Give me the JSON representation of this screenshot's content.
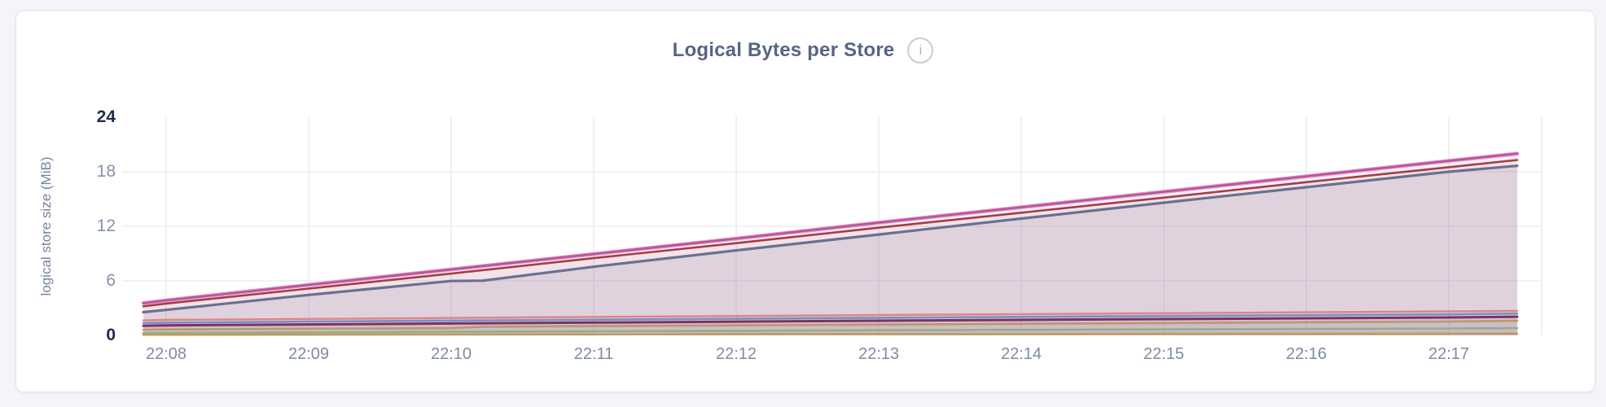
{
  "header": {
    "title": "Logical Bytes per Store",
    "info_glyph": "i"
  },
  "colors": {
    "page_background": "#F3F5F9",
    "card_background": "#FFFFFF",
    "card_border": "#E2E4E9",
    "grid": "#ECEDF0",
    "title_text": "#566584",
    "tick_minor": "#8592A9",
    "tick_major": "#1F2C4E",
    "axis_title": "#75829D"
  },
  "chart_data": {
    "type": "area",
    "title": "Logical Bytes per Store",
    "xlabel": "",
    "ylabel": "logical store size (MiB)",
    "x_ticks": [
      "22:08",
      "22:09",
      "22:10",
      "22:11",
      "22:12",
      "22:13",
      "22:14",
      "22:15",
      "22:16",
      "22:17"
    ],
    "y_ticks": [
      0,
      6,
      12,
      18,
      24
    ],
    "ylim": [
      0,
      24
    ],
    "x_range_minutes": [
      7.84,
      17.48
    ],
    "grid": true,
    "legend": "none",
    "series": [
      {
        "id": "pink",
        "color": "#BE4F9B",
        "halo": "#DB97C6",
        "width": 2.4,
        "fill": "rgba(199,95,167,0.10)",
        "points": [
          [
            7.84,
            3.55
          ],
          [
            8,
            3.85
          ],
          [
            9,
            5.55
          ],
          [
            10,
            7.25
          ],
          [
            11,
            8.95
          ],
          [
            12,
            10.65
          ],
          [
            13,
            12.4
          ],
          [
            14,
            14.1
          ],
          [
            15,
            15.8
          ],
          [
            16,
            17.5
          ],
          [
            17,
            19.2
          ],
          [
            17.48,
            20.0
          ]
        ]
      },
      {
        "id": "maroon",
        "color": "#A23E48",
        "width": 2.6,
        "fill": "rgba(162,62,72,0.07)",
        "points": [
          [
            7.84,
            3.2
          ],
          [
            8,
            3.5
          ],
          [
            9,
            5.15
          ],
          [
            10,
            6.8
          ],
          [
            11,
            8.5
          ],
          [
            12,
            10.15
          ],
          [
            13,
            11.85
          ],
          [
            14,
            13.5
          ],
          [
            15,
            15.15
          ],
          [
            16,
            16.85
          ],
          [
            17,
            18.5
          ],
          [
            17.48,
            19.3
          ]
        ]
      },
      {
        "id": "slate",
        "color": "#6A7090",
        "width": 3.2,
        "fill": "rgba(106,112,144,0.13)",
        "points": [
          [
            7.84,
            2.55
          ],
          [
            8,
            2.8
          ],
          [
            9,
            4.45
          ],
          [
            10,
            5.98
          ],
          [
            10.22,
            6.02
          ],
          [
            11,
            7.55
          ],
          [
            12,
            9.35
          ],
          [
            13,
            11.1
          ],
          [
            14,
            12.85
          ],
          [
            15,
            14.6
          ],
          [
            16,
            16.3
          ],
          [
            17,
            18.0
          ],
          [
            17.48,
            18.65
          ]
        ]
      },
      {
        "id": "salmon",
        "color": "#DE8486",
        "width": 2.4,
        "fill": "rgba(222,132,134,0.06)",
        "points": [
          [
            7.84,
            1.65
          ],
          [
            8,
            1.7
          ],
          [
            9,
            1.81
          ],
          [
            10,
            1.92
          ],
          [
            11,
            2.03
          ],
          [
            12,
            2.13
          ],
          [
            13,
            2.24
          ],
          [
            14,
            2.34
          ],
          [
            15,
            2.44
          ],
          [
            16,
            2.54
          ],
          [
            17,
            2.64
          ],
          [
            17.48,
            2.7
          ]
        ]
      },
      {
        "id": "blue",
        "color": "#7C8FC3",
        "width": 2.6,
        "fill": "rgba(124,143,195,0.06)",
        "points": [
          [
            7.84,
            1.35
          ],
          [
            8,
            1.4
          ],
          [
            9,
            1.51
          ],
          [
            10,
            1.62
          ],
          [
            11,
            1.72
          ],
          [
            12,
            1.83
          ],
          [
            13,
            1.93
          ],
          [
            14,
            2.03
          ],
          [
            15,
            2.13
          ],
          [
            16,
            2.22
          ],
          [
            17,
            2.31
          ],
          [
            17.48,
            2.4
          ]
        ]
      },
      {
        "id": "plum",
        "color": "#7B3265",
        "width": 3.0,
        "fill": "rgba(123,50,101,0.06)",
        "points": [
          [
            7.84,
            1.05
          ],
          [
            8,
            1.1
          ],
          [
            9,
            1.2
          ],
          [
            10,
            1.31
          ],
          [
            11,
            1.41
          ],
          [
            12,
            1.51
          ],
          [
            13,
            1.61
          ],
          [
            14,
            1.7
          ],
          [
            15,
            1.79
          ],
          [
            16,
            1.88
          ],
          [
            17,
            1.97
          ],
          [
            17.48,
            2.05
          ]
        ]
      },
      {
        "id": "tan",
        "color": "#BA9A62",
        "width": 2.6,
        "fill": "rgba(186,154,98,0.06)",
        "points": [
          [
            7.84,
            0.63
          ],
          [
            8,
            0.65
          ],
          [
            9,
            0.73
          ],
          [
            10,
            0.8
          ],
          [
            10.22,
            0.95
          ],
          [
            11,
            1.02
          ],
          [
            12,
            1.1
          ],
          [
            13,
            1.18
          ],
          [
            14,
            1.27
          ],
          [
            15,
            1.35
          ],
          [
            16,
            1.44
          ],
          [
            17,
            1.52
          ],
          [
            17.48,
            1.6
          ]
        ]
      },
      {
        "id": "green",
        "color": "#8FB08D",
        "width": 2.6,
        "fill": "rgba(143,176,141,0.06)",
        "points": [
          [
            7.84,
            0.25
          ],
          [
            8,
            0.27
          ],
          [
            9,
            0.33
          ],
          [
            10,
            0.39
          ],
          [
            11,
            0.45
          ],
          [
            12,
            0.5
          ],
          [
            13,
            0.56
          ],
          [
            14,
            0.61
          ],
          [
            15,
            0.66
          ],
          [
            16,
            0.71
          ],
          [
            17,
            0.76
          ],
          [
            17.48,
            0.8
          ]
        ]
      },
      {
        "id": "brown",
        "color": "#C09A5E",
        "width": 2.6,
        "fill": "rgba(192,154,94,0.06)",
        "points": [
          [
            7.84,
            0.07
          ],
          [
            8,
            0.07
          ],
          [
            9,
            0.08
          ],
          [
            10,
            0.1
          ],
          [
            11,
            0.11
          ],
          [
            12,
            0.13
          ],
          [
            13,
            0.14
          ],
          [
            14,
            0.15
          ],
          [
            15,
            0.17
          ],
          [
            16,
            0.18
          ],
          [
            17,
            0.19
          ],
          [
            17.48,
            0.2
          ]
        ]
      }
    ]
  }
}
